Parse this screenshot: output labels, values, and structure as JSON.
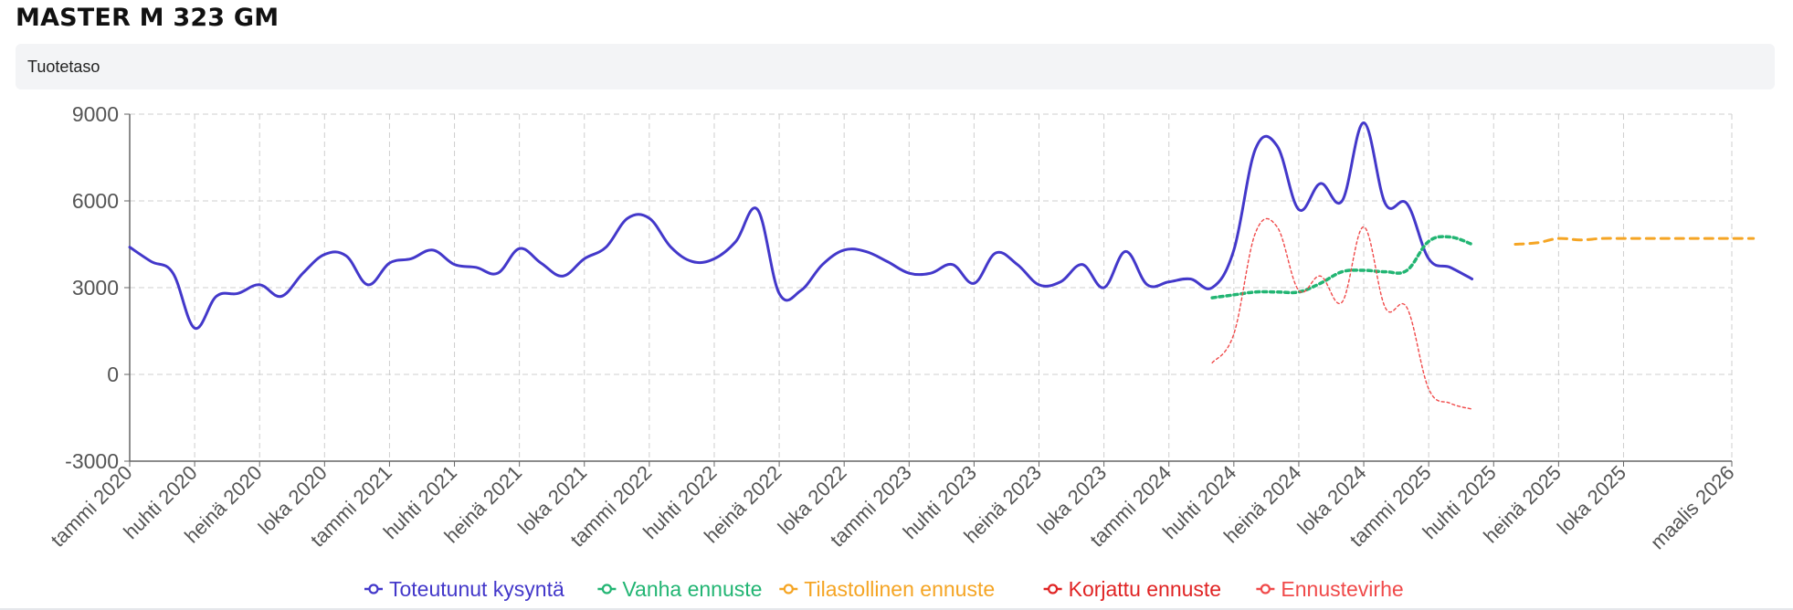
{
  "page": {
    "title": "MASTER M 323 GM",
    "level_label": "Tuotetaso"
  },
  "chart_data": {
    "type": "line",
    "ylim": [
      -3000,
      9000
    ],
    "yticks": [
      -3000,
      0,
      3000,
      6000,
      9000
    ],
    "x_ticks": [
      {
        "label": "tammi 2020",
        "m": 0
      },
      {
        "label": "huhti 2020",
        "m": 3
      },
      {
        "label": "heinä 2020",
        "m": 6
      },
      {
        "label": "loka 2020",
        "m": 9
      },
      {
        "label": "tammi 2021",
        "m": 12
      },
      {
        "label": "huhti 2021",
        "m": 15
      },
      {
        "label": "heinä 2021",
        "m": 18
      },
      {
        "label": "loka 2021",
        "m": 21
      },
      {
        "label": "tammi 2022",
        "m": 24
      },
      {
        "label": "huhti 2022",
        "m": 27
      },
      {
        "label": "heinä 2022",
        "m": 30
      },
      {
        "label": "loka 2022",
        "m": 33
      },
      {
        "label": "tammi 2023",
        "m": 36
      },
      {
        "label": "huhti 2023",
        "m": 39
      },
      {
        "label": "heinä 2023",
        "m": 42
      },
      {
        "label": "loka 2023",
        "m": 45
      },
      {
        "label": "tammi 2024",
        "m": 48
      },
      {
        "label": "huhti 2024",
        "m": 51
      },
      {
        "label": "heinä 2024",
        "m": 54
      },
      {
        "label": "loka 2024",
        "m": 57
      },
      {
        "label": "tammi 2025",
        "m": 60
      },
      {
        "label": "huhti 2025",
        "m": 63
      },
      {
        "label": "heinä 2025",
        "m": 66
      },
      {
        "label": "loka 2025",
        "m": 69
      },
      {
        "label": "maalis 2026",
        "m": 74
      }
    ],
    "grid": true,
    "legend_position": "bottom-center",
    "series": [
      {
        "name": "Toteutunut kysyntä",
        "color": "#4338ca",
        "style": "solid",
        "start": "tammi 2020",
        "values": [
          4400,
          3900,
          3500,
          1600,
          2700,
          2800,
          3100,
          2700,
          3500,
          4150,
          4100,
          3100,
          3850,
          4000,
          4300,
          3800,
          3700,
          3500,
          4350,
          3850,
          3400,
          4000,
          4400,
          5400,
          5400,
          4400,
          3900,
          4000,
          4600,
          5700,
          2800,
          2900,
          3800,
          4300,
          4250,
          3900,
          3500,
          3500,
          3800,
          3150,
          4200,
          3800,
          3100,
          3200,
          3800,
          3000,
          4250,
          3100,
          3200,
          3300,
          3000,
          4300,
          7800,
          7900,
          5700,
          6600,
          6000,
          8700,
          5900,
          5900,
          4000,
          3700,
          3300
        ]
      },
      {
        "name": "Vanha ennuste",
        "color": "#22b573",
        "style": "dotted",
        "start": "maalis 2024",
        "values": [
          2650,
          2750,
          2850,
          2850,
          2850,
          3150,
          3550,
          3600,
          3550,
          3600,
          4600,
          4750,
          4500
        ]
      },
      {
        "name": "Tilastollinen ennuste",
        "color": "#f5a524",
        "style": "dashed",
        "start": "toukokuu 2025",
        "values": [
          4500,
          4550,
          4700,
          4650,
          4700,
          4700,
          4700,
          4700,
          4700,
          4700,
          4700,
          4700
        ]
      },
      {
        "name": "Korjattu ennuste",
        "color": "#e02424",
        "style": "none",
        "values": []
      },
      {
        "name": "Ennustevirhe",
        "color": "#f04a4a",
        "style": "thin-dotted",
        "start": "maalis 2024",
        "values": [
          400,
          1400,
          4900,
          5100,
          2900,
          3400,
          2500,
          5100,
          2300,
          2300,
          -500,
          -1000,
          -1200
        ]
      }
    ]
  }
}
